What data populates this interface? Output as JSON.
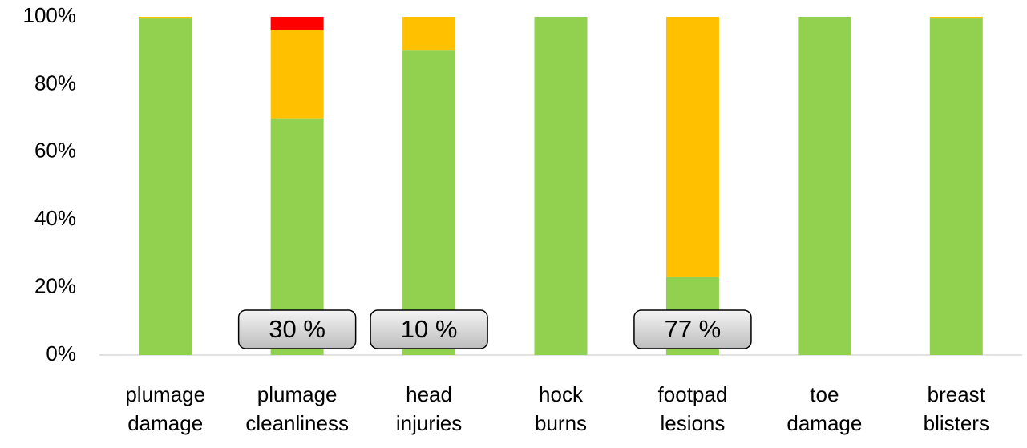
{
  "chart_data": {
    "type": "stacked_bar",
    "categories": [
      "plumage damage",
      "plumage cleanliness",
      "head injuries",
      "hock burns",
      "footpad lesions",
      "toe damage",
      "breast blisters"
    ],
    "series": [
      {
        "color": "#92d050",
        "values": [
          99.5,
          70,
          90,
          100,
          23,
          100,
          99.5
        ]
      },
      {
        "color": "#ffc000",
        "values": [
          0.5,
          26,
          10,
          0,
          77,
          0,
          0.5
        ]
      },
      {
        "color": "#ff0000",
        "values": [
          0,
          4,
          0,
          0,
          0,
          0,
          0
        ]
      }
    ],
    "annotations": [
      null,
      "30 %",
      "10 %",
      null,
      "77 %",
      null,
      null
    ],
    "ylim": [
      0,
      100
    ],
    "yticks": [
      {
        "value": 0,
        "label": "0%"
      },
      {
        "value": 20,
        "label": "20%"
      },
      {
        "value": 40,
        "label": "40%"
      },
      {
        "value": 60,
        "label": "60%"
      },
      {
        "value": 80,
        "label": "80%"
      },
      {
        "value": 100,
        "label": "100%"
      }
    ],
    "grid": false
  }
}
